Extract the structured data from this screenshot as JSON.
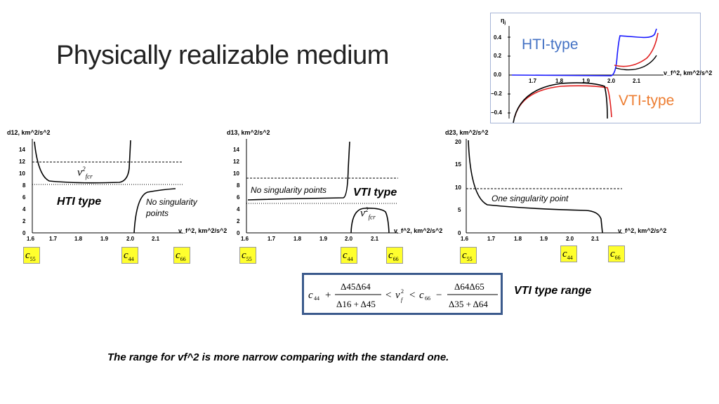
{
  "title": "Physically realizable medium",
  "inset": {
    "y_axis_label": "η",
    "y_axis_sub": "j",
    "x_axis_label": "v_f^2, km^2/s^2",
    "y_ticks": [
      "0.4",
      "0.2",
      "0.0",
      "−0.2",
      "−0.4"
    ],
    "x_ticks": [
      "1.7",
      "1.8",
      "1.9",
      "2.0",
      "2.1"
    ],
    "hti_label": "HTI-type",
    "vti_label": "VTI-type",
    "colors": {
      "hti": "#4472c4",
      "vti": "#ed7d31",
      "red": "#e02020",
      "blue": "#1a1aff",
      "black": "#000000"
    }
  },
  "charts": {
    "d12": {
      "y_label": "d12, km^2/s^2",
      "x_label": "v_f^2, km^2/s^2",
      "y_ticks": [
        "0",
        "2",
        "4",
        "6",
        "8",
        "10",
        "12",
        "14"
      ],
      "x_ticks": [
        "1.6",
        "1.7",
        "1.8",
        "1.9",
        "2.0",
        "2.1"
      ],
      "annot_v": "v",
      "annot_sup": "2",
      "annot_sub": "fcr",
      "type_label": "HTI type",
      "note_line1": "No singularity",
      "note_line2": "points"
    },
    "d13": {
      "y_label": "d13, km^2/s^2",
      "x_label": "v_f^2, km^2/s^2",
      "y_ticks": [
        "0",
        "2",
        "4",
        "6",
        "8",
        "10",
        "12",
        "14"
      ],
      "x_ticks": [
        "1.6",
        "1.7",
        "1.8",
        "1.9",
        "2.0",
        "2.1"
      ],
      "note": "No singularity points",
      "type_label": "VTI type",
      "annot_v": "v",
      "annot_sup": "2",
      "annot_sub": "fcr"
    },
    "d23": {
      "y_label": "d23, km^2/s^2",
      "x_label": "v_f^2, km^2/s^2",
      "y_ticks": [
        "0",
        "5",
        "10",
        "15",
        "20"
      ],
      "x_ticks": [
        "1.6",
        "1.7",
        "1.8",
        "1.9",
        "2.0",
        "2.1"
      ],
      "note": "One singularity point"
    }
  },
  "boxes": {
    "c55": {
      "c": "c",
      "sub": "55"
    },
    "c44": {
      "c": "c",
      "sub": "44"
    },
    "c66": {
      "c": "c",
      "sub": "66"
    }
  },
  "equation": {
    "c44": "c",
    "c44_sub": "44",
    "plus": "+",
    "num1": "Δ45Δ64",
    "den1": "Δ16 + Δ45",
    "lt1": "<",
    "vf": "v",
    "vf_sup": "2",
    "vf_sub": "f",
    "lt2": "<",
    "c66": "c",
    "c66_sub": "66",
    "minus": "−",
    "num2": "Δ64Δ65",
    "den2": "Δ35 + Δ64"
  },
  "vti_range_label": "VTI type range",
  "footnote": "The range for vf^2 is more narrow comparing with the standard one."
}
